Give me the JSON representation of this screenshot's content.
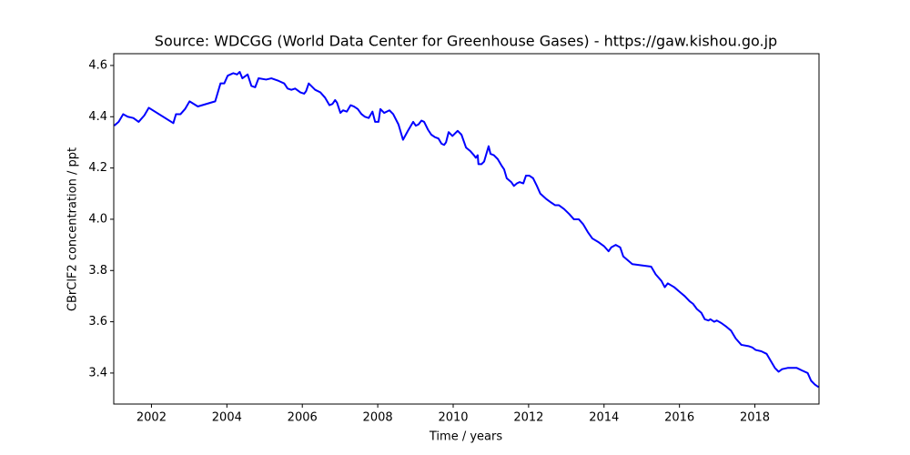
{
  "chart_data": {
    "type": "line",
    "title": "Source: WDCGG (World Data Center for Greenhouse Gases) - https://gaw.kishou.go.jp",
    "x_label": "Time / years",
    "y_label": "CBrClF2 concentration / ppt",
    "color": "#0000ff",
    "x": [
      2001.01,
      2001.13,
      2001.25,
      2001.37,
      2001.52,
      2001.66,
      2001.81,
      2001.93,
      2002.58,
      2002.65,
      2002.77,
      2002.89,
      2003.01,
      2003.23,
      2003.69,
      2003.83,
      2003.93,
      2004.02,
      2004.17,
      2004.27,
      2004.34,
      2004.41,
      2004.55,
      2004.65,
      2004.75,
      2004.84,
      2005.04,
      2005.18,
      2005.37,
      2005.52,
      2005.61,
      2005.71,
      2005.81,
      2005.95,
      2006.05,
      2006.1,
      2006.17,
      2006.34,
      2006.48,
      2006.6,
      2006.72,
      2006.8,
      2006.87,
      2006.92,
      2007.01,
      2007.08,
      2007.18,
      2007.28,
      2007.37,
      2007.47,
      2007.57,
      2007.66,
      2007.76,
      2007.86,
      2007.93,
      2008.02,
      2008.07,
      2008.17,
      2008.31,
      2008.41,
      2008.55,
      2008.67,
      2008.8,
      2008.94,
      2009.01,
      2009.08,
      2009.16,
      2009.23,
      2009.33,
      2009.42,
      2009.52,
      2009.61,
      2009.69,
      2009.76,
      2009.81,
      2009.88,
      2009.98,
      2010.05,
      2010.12,
      2010.22,
      2010.34,
      2010.46,
      2010.55,
      2010.6,
      2010.65,
      2010.67,
      2010.75,
      2010.82,
      2010.87,
      2010.94,
      2010.99,
      2011.08,
      2011.18,
      2011.28,
      2011.35,
      2011.42,
      2011.54,
      2011.61,
      2011.69,
      2011.76,
      2011.86,
      2011.93,
      2012.02,
      2012.12,
      2012.22,
      2012.31,
      2012.46,
      2012.6,
      2012.7,
      2012.8,
      2012.94,
      2013.08,
      2013.2,
      2013.33,
      2013.45,
      2013.57,
      2013.69,
      2013.86,
      2014.0,
      2014.12,
      2014.19,
      2014.31,
      2014.43,
      2014.51,
      2014.63,
      2014.75,
      2015.25,
      2015.37,
      2015.52,
      2015.61,
      2015.69,
      2015.86,
      2016.02,
      2016.14,
      2016.27,
      2016.36,
      2016.46,
      2016.58,
      2016.67,
      2016.77,
      2016.82,
      2016.92,
      2016.99,
      2017.11,
      2017.25,
      2017.37,
      2017.49,
      2017.64,
      2017.83,
      2017.93,
      2018.02,
      2018.17,
      2018.31,
      2018.43,
      2018.53,
      2018.63,
      2018.72,
      2018.87,
      2019.06,
      2019.11,
      2019.25,
      2019.4,
      2019.49,
      2019.59,
      2019.69
    ],
    "values": [
      4.365,
      4.38,
      4.41,
      4.4,
      4.395,
      4.38,
      4.405,
      4.435,
      4.375,
      4.41,
      4.41,
      4.43,
      4.46,
      4.44,
      4.46,
      4.53,
      4.53,
      4.56,
      4.57,
      4.565,
      4.575,
      4.55,
      4.565,
      4.52,
      4.515,
      4.55,
      4.545,
      4.55,
      4.54,
      4.53,
      4.51,
      4.505,
      4.51,
      4.495,
      4.49,
      4.5,
      4.53,
      4.505,
      4.495,
      4.475,
      4.445,
      4.45,
      4.465,
      4.455,
      4.415,
      4.425,
      4.42,
      4.445,
      4.44,
      4.43,
      4.41,
      4.4,
      4.395,
      4.42,
      4.38,
      4.38,
      4.43,
      4.415,
      4.425,
      4.41,
      4.37,
      4.31,
      4.345,
      4.38,
      4.365,
      4.37,
      4.385,
      4.38,
      4.35,
      4.33,
      4.32,
      4.315,
      4.295,
      4.29,
      4.3,
      4.34,
      4.325,
      4.335,
      4.345,
      4.33,
      4.28,
      4.265,
      4.25,
      4.24,
      4.25,
      4.215,
      4.215,
      4.225,
      4.25,
      4.285,
      4.255,
      4.25,
      4.235,
      4.21,
      4.195,
      4.16,
      4.145,
      4.13,
      4.14,
      4.145,
      4.14,
      4.17,
      4.17,
      4.16,
      4.13,
      4.1,
      4.08,
      4.065,
      4.055,
      4.055,
      4.04,
      4.02,
      4.0,
      4.0,
      3.98,
      3.95,
      3.925,
      3.91,
      3.895,
      3.875,
      3.89,
      3.9,
      3.89,
      3.855,
      3.84,
      3.825,
      3.815,
      3.785,
      3.76,
      3.735,
      3.75,
      3.735,
      3.715,
      3.7,
      3.68,
      3.67,
      3.65,
      3.635,
      3.61,
      3.605,
      3.61,
      3.6,
      3.605,
      3.595,
      3.58,
      3.565,
      3.535,
      3.51,
      3.505,
      3.5,
      3.49,
      3.485,
      3.475,
      3.445,
      3.42,
      3.405,
      3.415,
      3.42,
      3.42,
      3.42,
      3.41,
      3.4,
      3.37,
      3.355,
      3.345
    ],
    "xlim": [
      2001.0,
      2019.7
    ],
    "ylim": [
      3.279,
      4.646
    ],
    "xticks": [
      2002,
      2004,
      2006,
      2008,
      2010,
      2012,
      2014,
      2016,
      2018
    ],
    "yticks": [
      3.4,
      3.6,
      3.8,
      {
        "value": 4,
        "label": "4.0"
      },
      4.2,
      4.4,
      4.6
    ]
  }
}
